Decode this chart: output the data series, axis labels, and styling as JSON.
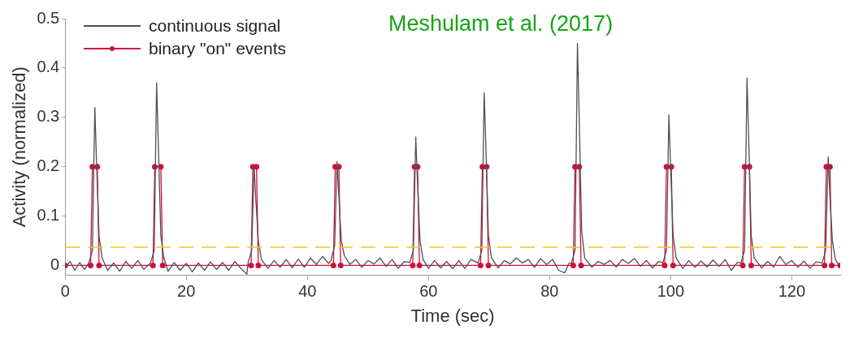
{
  "chart_data": {
    "type": "line",
    "xlabel": "Time (sec)",
    "ylabel": "Activity (normalized)",
    "xlim": [
      0,
      128
    ],
    "ylim": [
      -0.02,
      0.5
    ],
    "xticks": [
      0,
      20,
      40,
      60,
      80,
      100,
      120
    ],
    "yticks": [
      0,
      0.1,
      0.2,
      0.3,
      0.4,
      0.5
    ],
    "grid": false,
    "legend": "top left",
    "annotations": [
      "Meshulam et al. (2017)"
    ],
    "ref_lines": [
      {
        "axis": "y",
        "value": 0.037,
        "color": "#f5c518",
        "line_style": "dashed"
      }
    ],
    "series": [
      {
        "name": "continuous signal",
        "color": "#505050",
        "marker": "none",
        "x": [
          0,
          0.8,
          1.6,
          2.4,
          3.2,
          3.9,
          4.5,
          4.9,
          5.15,
          5.6,
          6.1,
          7,
          8,
          9,
          10,
          11,
          12,
          13,
          14.1,
          14.7,
          15.1,
          15.35,
          15.8,
          16.3,
          17,
          18,
          19,
          20,
          21,
          22,
          23,
          24,
          25,
          26,
          27,
          28,
          29,
          30,
          30.2,
          30.8,
          31.2,
          31.45,
          31.9,
          32.4,
          33.5,
          34.5,
          35.5,
          36.5,
          37.5,
          38.5,
          39.5,
          40.5,
          41.5,
          42.5,
          43.5,
          43.9,
          44.5,
          44.9,
          45.15,
          45.6,
          46.1,
          47,
          48,
          49,
          50,
          51,
          52,
          53,
          54,
          55,
          56,
          56.9,
          57.5,
          57.9,
          58.15,
          58.6,
          59.1,
          60,
          61,
          62,
          63,
          64,
          65,
          66,
          67,
          68.2,
          68.8,
          69.2,
          69.45,
          69.9,
          70.4,
          71.5,
          72.5,
          73.5,
          74.5,
          75.5,
          76.5,
          77.5,
          78.5,
          79.5,
          80.5,
          81.5,
          82.5,
          83.2,
          83.6,
          84.2,
          84.6,
          84.85,
          85.3,
          85.8,
          87,
          88,
          89,
          90,
          91,
          92,
          93,
          94,
          95,
          96,
          97,
          98,
          98.7,
          99.3,
          99.7,
          99.95,
          100.4,
          100.9,
          102,
          103,
          104,
          105,
          106,
          107,
          108,
          109,
          110,
          111,
          111.6,
          112.2,
          112.6,
          112.85,
          113.3,
          113.8,
          115,
          116,
          117,
          118,
          119,
          120,
          121,
          122,
          123,
          124,
          125,
          125.6,
          126,
          126.25,
          126.7,
          127.2,
          128
        ],
        "values": [
          -0.005,
          0.008,
          -0.01,
          0.006,
          -0.008,
          0.005,
          0.03,
          0.32,
          0.22,
          0.06,
          0.015,
          -0.01,
          0.005,
          -0.012,
          0.008,
          -0.006,
          0.01,
          -0.008,
          0.005,
          0.03,
          0.37,
          0.26,
          0.06,
          0.015,
          -0.012,
          0.006,
          -0.01,
          0.004,
          -0.013,
          0.005,
          -0.01,
          0.007,
          -0.008,
          0.006,
          -0.01,
          0.008,
          -0.006,
          -0.018,
          0.005,
          0.03,
          0.2,
          0.14,
          0.05,
          0.012,
          -0.006,
          0.01,
          -0.004,
          0.012,
          -0.005,
          0.013,
          -0.004,
          0.015,
          0.002,
          0.018,
          0.004,
          0.01,
          0.04,
          0.21,
          0.15,
          0.05,
          0.02,
          0.002,
          0.012,
          -0.004,
          0.01,
          0.003,
          0.015,
          -0.002,
          0.012,
          -0.006,
          0.008,
          0.006,
          0.03,
          0.26,
          0.18,
          0.05,
          0.012,
          -0.006,
          0.01,
          -0.005,
          0.008,
          -0.007,
          0.01,
          -0.006,
          0.012,
          0.005,
          0.03,
          0.35,
          0.25,
          0.06,
          0.015,
          -0.005,
          0.01,
          0.003,
          0.015,
          0.005,
          0.012,
          -0.004,
          0.014,
          0.002,
          0.012,
          -0.01,
          -0.015,
          0.004,
          0.005,
          0.03,
          0.45,
          0.32,
          0.07,
          0.015,
          -0.004,
          0.008,
          0.002,
          0.01,
          -0.003,
          0.012,
          0.004,
          0.014,
          -0.002,
          0.01,
          -0.005,
          0.008,
          0.005,
          0.03,
          0.305,
          0.21,
          0.06,
          0.015,
          -0.006,
          0.01,
          -0.004,
          0.009,
          -0.003,
          0.011,
          -0.002,
          0.012,
          -0.01,
          0.006,
          0.005,
          0.03,
          0.38,
          0.27,
          0.06,
          0.015,
          -0.005,
          0.008,
          -0.003,
          0.018,
          0.002,
          0.01,
          -0.004,
          0.009,
          -0.006,
          0.007,
          0.005,
          0.03,
          0.22,
          0.15,
          0.05,
          0.012,
          -0.004
        ]
      },
      {
        "name": "binary \"on\" events",
        "color": "#d0103a",
        "marker": "circle",
        "x": [
          0,
          4.2,
          4.5,
          5.3,
          5.6,
          14.5,
          14.8,
          15.8,
          16.1,
          30.7,
          31,
          31.6,
          31.9,
          44.3,
          44.6,
          45.2,
          45.5,
          57.4,
          57.7,
          58.2,
          58.5,
          68.6,
          68.9,
          69.6,
          69.9,
          83.9,
          84.2,
          84.9,
          85.2,
          99,
          99.3,
          100.1,
          100.4,
          111.9,
          112.2,
          113,
          113.3,
          125.4,
          125.7,
          126.3,
          126.6,
          128
        ],
        "values": [
          0,
          0,
          0.2,
          0.2,
          0,
          0,
          0.2,
          0.2,
          0,
          0,
          0.2,
          0.2,
          0,
          0,
          0.2,
          0.2,
          0,
          0,
          0.2,
          0.2,
          0,
          0,
          0.2,
          0.2,
          0,
          0,
          0.2,
          0.2,
          0,
          0,
          0.2,
          0.2,
          0,
          0,
          0.2,
          0.2,
          0,
          0,
          0.2,
          0.2,
          0,
          0
        ]
      }
    ]
  }
}
